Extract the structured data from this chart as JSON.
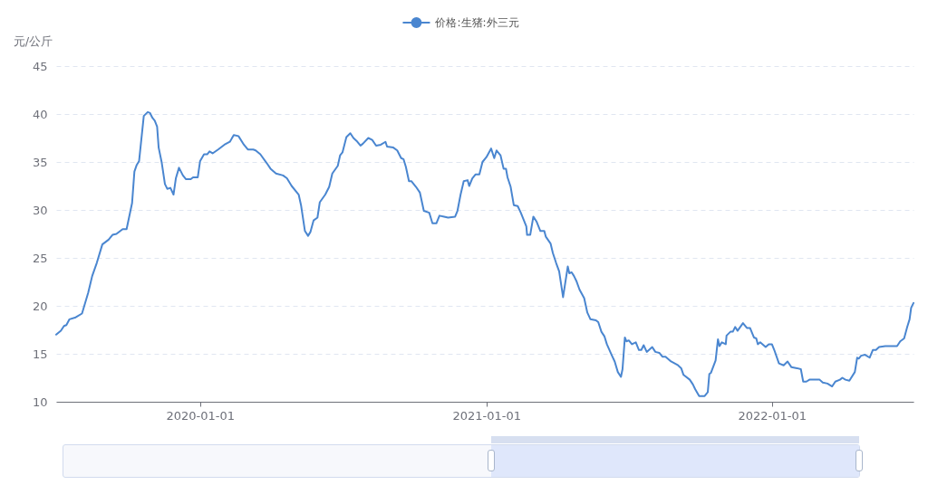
{
  "chart_data": {
    "type": "line",
    "ylabel": "元/公斤",
    "x": [
      "2019-07-01",
      "2019-07-07",
      "2019-07-11",
      "2019-07-14",
      "2019-07-18",
      "2019-07-26",
      "2019-08-03",
      "2019-08-11",
      "2019-08-16",
      "2019-08-22",
      "2019-08-29",
      "2019-09-06",
      "2019-09-11",
      "2019-09-16",
      "2019-09-24",
      "2019-09-29",
      "2019-10-06",
      "2019-10-09",
      "2019-10-12",
      "2019-10-15",
      "2019-10-21",
      "2019-10-26",
      "2019-10-29",
      "2019-11-01",
      "2019-11-04",
      "2019-11-07",
      "2019-11-09",
      "2019-11-13",
      "2019-11-17",
      "2019-11-20",
      "2019-11-24",
      "2019-11-28",
      "2019-12-01",
      "2019-12-05",
      "2019-12-10",
      "2019-12-14",
      "2019-12-20",
      "2019-12-23",
      "2019-12-29",
      "2020-01-01",
      "2020-01-06",
      "2020-01-10",
      "2020-01-13",
      "2020-01-17",
      "2020-01-24",
      "2020-02-01",
      "2020-02-08",
      "2020-02-13",
      "2020-02-19",
      "2020-02-26",
      "2020-03-02",
      "2020-03-09",
      "2020-03-12",
      "2020-03-18",
      "2020-03-26",
      "2020-03-31",
      "2020-04-07",
      "2020-04-16",
      "2020-04-21",
      "2020-04-27",
      "2020-05-06",
      "2020-05-09",
      "2020-05-14",
      "2020-05-18",
      "2020-05-21",
      "2020-05-25",
      "2020-05-30",
      "2020-06-02",
      "2020-06-09",
      "2020-06-14",
      "2020-06-18",
      "2020-06-25",
      "2020-06-28",
      "2020-07-01",
      "2020-07-06",
      "2020-07-11",
      "2020-07-15",
      "2020-07-19",
      "2020-07-24",
      "2020-07-27",
      "2020-08-03",
      "2020-08-08",
      "2020-08-13",
      "2020-08-19",
      "2020-08-25",
      "2020-08-27",
      "2020-09-04",
      "2020-09-09",
      "2020-09-14",
      "2020-09-17",
      "2020-09-20",
      "2020-09-24",
      "2020-09-27",
      "2020-10-03",
      "2020-10-08",
      "2020-10-13",
      "2020-10-20",
      "2020-10-24",
      "2020-10-29",
      "2020-11-02",
      "2020-11-08",
      "2020-11-13",
      "2020-11-22",
      "2020-11-25",
      "2020-11-29",
      "2020-12-03",
      "2020-12-08",
      "2020-12-10",
      "2020-12-14",
      "2020-12-18",
      "2020-12-23",
      "2020-12-27",
      "2021-01-01",
      "2021-01-07",
      "2021-01-11",
      "2021-01-14",
      "2021-01-19",
      "2021-01-23",
      "2021-01-26",
      "2021-01-28",
      "2021-02-01",
      "2021-02-05",
      "2021-02-10",
      "2021-02-14",
      "2021-02-21",
      "2021-02-22",
      "2021-02-26",
      "2021-03-02",
      "2021-03-06",
      "2021-03-11",
      "2021-03-16",
      "2021-03-18",
      "2021-03-24",
      "2021-03-27",
      "2021-03-31",
      "2021-04-04",
      "2021-04-09",
      "2021-04-15",
      "2021-04-17",
      "2021-04-20",
      "2021-04-23",
      "2021-04-26",
      "2021-04-30",
      "2021-05-06",
      "2021-05-10",
      "2021-05-14",
      "2021-05-21",
      "2021-05-24",
      "2021-05-28",
      "2021-06-01",
      "2021-06-04",
      "2021-06-10",
      "2021-06-14",
      "2021-06-18",
      "2021-06-22",
      "2021-06-24",
      "2021-06-27",
      "2021-06-29",
      "2021-07-02",
      "2021-07-06",
      "2021-07-11",
      "2021-07-15",
      "2021-07-18",
      "2021-07-21",
      "2021-07-25",
      "2021-08-01",
      "2021-08-05",
      "2021-08-10",
      "2021-08-14",
      "2021-08-18",
      "2021-08-25",
      "2021-09-03",
      "2021-09-07",
      "2021-09-10",
      "2021-09-18",
      "2021-09-22",
      "2021-09-25",
      "2021-09-30",
      "2021-10-07",
      "2021-10-11",
      "2021-10-13",
      "2021-10-15",
      "2021-10-21",
      "2021-10-24",
      "2021-10-26",
      "2021-10-29",
      "2021-11-03",
      "2021-11-04",
      "2021-11-09",
      "2021-11-12",
      "2021-11-15",
      "2021-11-18",
      "2021-11-25",
      "2021-11-30",
      "2021-12-04",
      "2021-12-09",
      "2021-12-12",
      "2021-12-14",
      "2021-12-17",
      "2021-12-24",
      "2021-12-28",
      "2022-01-01",
      "2022-01-04",
      "2022-01-10",
      "2022-01-16",
      "2022-01-21",
      "2022-01-26",
      "2022-02-02",
      "2022-02-07",
      "2022-02-10",
      "2022-02-14",
      "2022-02-18",
      "2022-03-03",
      "2022-03-07",
      "2022-03-13",
      "2022-03-19",
      "2022-03-23",
      "2022-03-29",
      "2022-04-01",
      "2022-04-05",
      "2022-04-10",
      "2022-04-17",
      "2022-04-20",
      "2022-04-22",
      "2022-04-25",
      "2022-04-30",
      "2022-05-06",
      "2022-05-10",
      "2022-05-14",
      "2022-05-18",
      "2022-05-26",
      "2022-06-10",
      "2022-06-14",
      "2022-06-19",
      "2022-06-23",
      "2022-06-26",
      "2022-06-28",
      "2022-07-01"
    ],
    "series": [
      {
        "name": "价格:生猪:外三元",
        "color": "#4a86d0",
        "values": [
          17.0,
          17.4,
          17.9,
          18.0,
          18.6,
          18.8,
          19.2,
          21.4,
          23.1,
          24.5,
          26.4,
          26.9,
          27.4,
          27.5,
          28.0,
          28.0,
          30.7,
          34.0,
          34.7,
          35.1,
          39.8,
          40.2,
          40.1,
          39.6,
          39.3,
          38.7,
          36.5,
          34.9,
          32.7,
          32.2,
          32.3,
          31.6,
          33.3,
          34.4,
          33.6,
          33.2,
          33.2,
          33.4,
          33.4,
          35.1,
          35.8,
          35.8,
          36.1,
          35.9,
          36.3,
          36.8,
          37.1,
          37.8,
          37.7,
          36.8,
          36.3,
          36.3,
          36.2,
          35.8,
          34.9,
          34.3,
          33.8,
          33.6,
          33.3,
          32.5,
          31.6,
          30.5,
          27.8,
          27.3,
          27.7,
          28.9,
          29.2,
          30.8,
          31.6,
          32.4,
          33.8,
          34.6,
          35.7,
          36.0,
          37.6,
          38.0,
          37.5,
          37.2,
          36.7,
          36.9,
          37.5,
          37.3,
          36.7,
          36.8,
          37.1,
          36.6,
          36.5,
          36.2,
          35.4,
          35.3,
          34.5,
          33.0,
          33.0,
          32.4,
          31.8,
          29.9,
          29.7,
          28.6,
          28.6,
          29.4,
          29.3,
          29.2,
          29.3,
          29.9,
          31.6,
          33.0,
          33.1,
          32.5,
          33.3,
          33.7,
          33.7,
          35.0,
          35.5,
          36.4,
          35.4,
          36.2,
          35.7,
          34.3,
          34.3,
          33.4,
          32.4,
          30.5,
          30.4,
          29.7,
          28.3,
          27.4,
          27.4,
          29.3,
          28.8,
          27.8,
          27.8,
          27.2,
          26.5,
          25.5,
          24.5,
          23.6,
          20.9,
          24.1,
          23.4,
          23.5,
          23.1,
          22.6,
          21.7,
          20.8,
          19.3,
          18.6,
          18.5,
          18.3,
          17.3,
          16.8,
          16.0,
          14.9,
          14.2,
          13.1,
          12.6,
          13.4,
          16.7,
          16.3,
          16.4,
          16.0,
          16.2,
          15.4,
          15.4,
          15.9,
          15.2,
          15.7,
          15.2,
          15.1,
          14.7,
          14.7,
          14.2,
          13.8,
          13.5,
          12.8,
          12.3,
          11.8,
          11.3,
          10.6,
          10.6,
          11.0,
          12.9,
          13.0,
          14.3,
          16.5,
          15.8,
          16.2,
          16.0,
          16.9,
          17.3,
          17.3,
          17.8,
          17.4,
          18.2,
          17.7,
          17.7,
          16.7,
          16.6,
          16.0,
          16.2,
          15.7,
          16.0,
          16.0,
          15.4,
          14.0,
          13.8,
          14.2,
          13.6,
          13.5,
          13.4,
          12.1,
          12.1,
          12.3,
          12.3,
          12.0,
          11.9,
          11.6,
          12.1,
          12.3,
          12.5,
          12.3,
          12.2,
          13.1,
          14.6,
          14.5,
          14.8,
          14.9,
          14.6,
          15.4,
          15.4,
          15.7,
          15.8,
          15.8,
          16.3,
          16.6,
          17.8,
          18.6,
          19.8,
          20.3
        ]
      }
    ],
    "xlim": [
      "2019-07-01",
      "2022-07-01"
    ],
    "xticks": [
      "2020-01-01",
      "2021-01-01",
      "2022-01-01"
    ],
    "ylim": [
      10,
      45
    ],
    "yticks": [
      10,
      15,
      20,
      25,
      30,
      35,
      40,
      45
    ],
    "grid": "y",
    "legend": "top"
  }
}
